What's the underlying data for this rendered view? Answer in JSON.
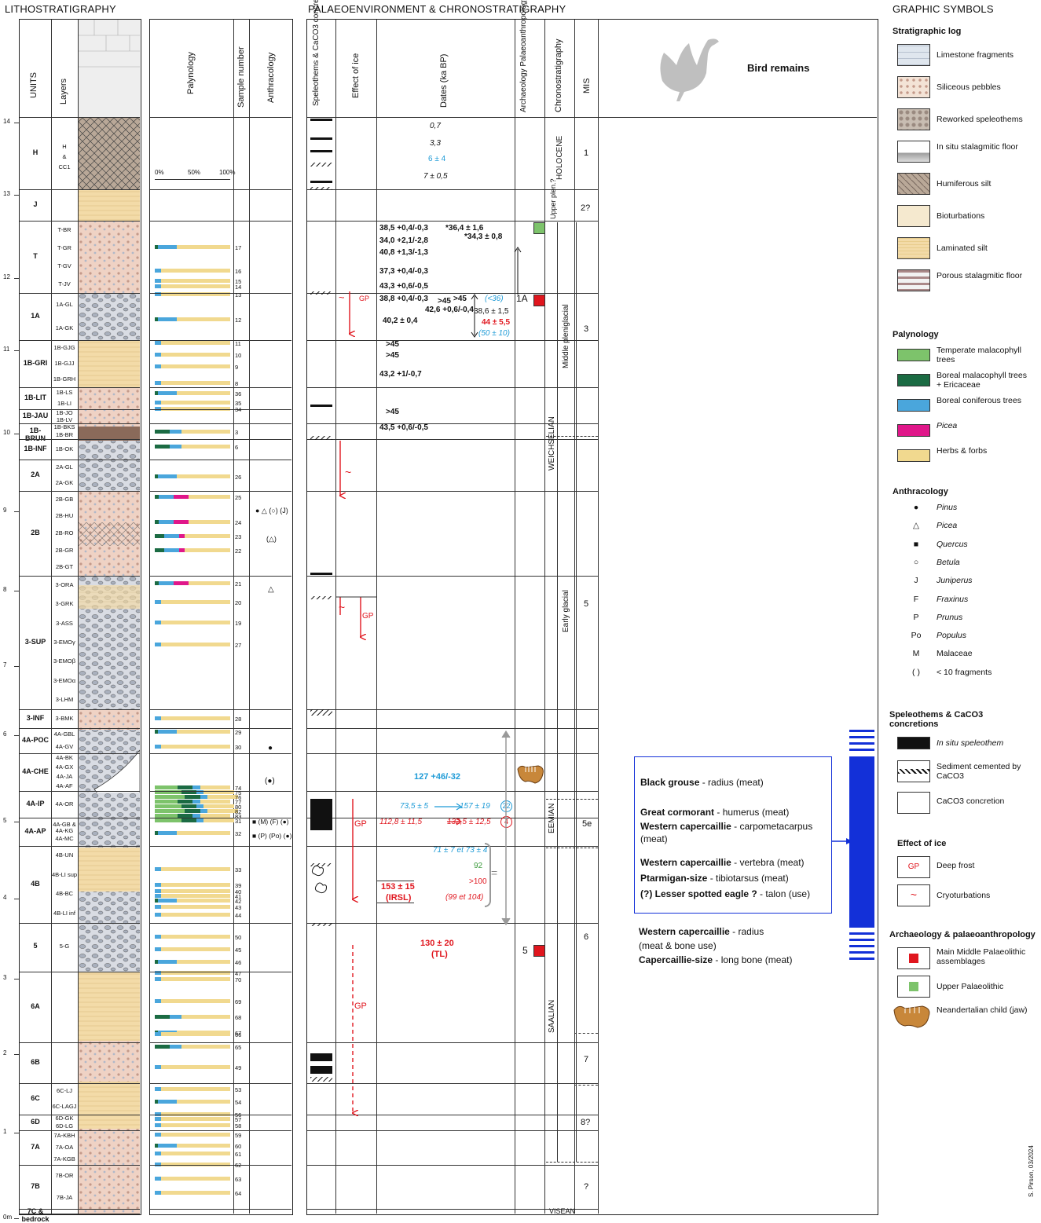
{
  "headers": {
    "lithostratigraphy": "LITHOSTRATIGRAPHY",
    "palaeo": "PALAEOENVIRONMENT  &  CHRONOSTRATIGRAPHY",
    "graphic_symbols": "GRAPHIC SYMBOLS"
  },
  "columns": {
    "units": "UNITS",
    "layers": "Layers",
    "palynology": "Palynology",
    "sample_number": "Sample number",
    "anthracology": "Anthracology",
    "speleothems": "Speleothems & CaCO3 concretions",
    "effect_of_ice": "Effect of ice",
    "dates": "Dates (ka BP)",
    "archaeology": "Archaeology Palaeoanthropology",
    "chronostratigraphy": "Chronostratigraphy",
    "mis": "MIS",
    "bird_remains": "Bird remains"
  },
  "depth_ticks": [
    "14",
    "13",
    "12",
    "11",
    "10",
    "9",
    "8",
    "7",
    "6",
    "5",
    "4",
    "3",
    "2",
    "1",
    "0m"
  ],
  "units": [
    "H",
    "J",
    "T",
    "1A",
    "1B-GRI",
    "1B-LIT",
    "1B-JAU",
    "1B-BRUN",
    "1B-INF",
    "2A",
    "2B",
    "3-SUP",
    "3-INF",
    "4A-POC",
    "4A-CHE",
    "4A-IP",
    "4A-AP",
    "4B",
    "5",
    "6A",
    "6B",
    "6C",
    "6D",
    "7A",
    "7B",
    "7C & bedrock"
  ],
  "layers": {
    "H": "H & CC1",
    "J": "",
    "T": [
      "T-BR",
      "T-GR",
      "T-GV",
      "T-JV"
    ],
    "1A": [
      "1A-GL",
      "1A-GK"
    ],
    "1B-GRI": [
      "1B-GJG",
      "1B-GJJ",
      "1B-GRH"
    ],
    "1B-LIT": [
      "1B-LS",
      "1B-LI"
    ],
    "1B-JAU": [
      "1B-JO",
      "1B-LV"
    ],
    "1B-BRUN": [
      "1B-BKS",
      "1B-BR"
    ],
    "1B-INF": [
      "1B-OK"
    ],
    "2A": [
      "2A-GL",
      "2A-GK"
    ],
    "2B": [
      "2B-GB",
      "2B-HU",
      "2B-RO",
      "2B-GR",
      "2B-GT"
    ],
    "3-SUP": [
      "3-ORA",
      "3-GRK",
      "3-ASS",
      "3-EMOγ",
      "3-EMOβ",
      "3-EMOα",
      "3-LHM"
    ],
    "3-INF": [
      "3-BMK"
    ],
    "4A-POC": [
      "4A-GBL",
      "4A-GV"
    ],
    "4A-CHE": [
      "4A-BK",
      "4A-GX",
      "4A-JA",
      "4A-AF"
    ],
    "4A-IP": [
      "4A-OR"
    ],
    "4A-AP": [
      "4A-GB & 4A-KG",
      "4A-MC"
    ],
    "4B": [
      "4B-UN",
      "4B-LI sup",
      "4B-BC",
      "4B-LI inf"
    ],
    "5": [
      "5-G"
    ],
    "6C": [
      "6C-LJ",
      "6C-LAGJ"
    ],
    "6D": [
      "6D-GK",
      "6D-LG"
    ],
    "7A": [
      "7A-KBH",
      "7A-OA",
      "7A-KGB"
    ],
    "7B": [
      "7B-OR",
      "7B-JA"
    ]
  },
  "palynology_scale": [
    "0%",
    "50%",
    "100%"
  ],
  "samples": [
    "17",
    "16",
    "15",
    "14",
    "13",
    "12",
    "11",
    "10",
    "9",
    "8",
    "36",
    "35",
    "34",
    "3",
    "6",
    "26",
    "25",
    "24",
    "23",
    "22",
    "21",
    "20",
    "19",
    "27",
    "28",
    "29",
    "30",
    "74",
    "75",
    "76",
    "77",
    "80",
    "82",
    "83",
    "31",
    "32",
    "33",
    "39",
    "40",
    "41",
    "42",
    "43",
    "44",
    "50",
    "45",
    "46",
    "47",
    "70",
    "69",
    "68",
    "67",
    "66",
    "65",
    "49",
    "53",
    "54",
    "56",
    "57",
    "58",
    "59",
    "60",
    "61",
    "62",
    "63",
    "64"
  ],
  "anthracology_marks": {
    "a2b": "● △ (○) (J)",
    "a2b_2": "(△)",
    "a3": "△",
    "a4apoc": "●",
    "a4ache": "(●)",
    "a4aip": "■ (M) (F) (●)",
    "a4aap": "■ (P) (Po) (●)"
  },
  "ice": {
    "gp": "GP",
    "cryo": "~"
  },
  "dates": {
    "h1": "0,7",
    "h2": "3,3",
    "h3": "6 ± 4",
    "h4": "7 ± 0,5",
    "t1": "38,5 +0,4/-0,3",
    "t2": "*36,4 ± 1,6",
    "t3": "*34,3 ± 0,8",
    "t4": "34,0 +2,1/-2,8",
    "t5": "40,8 +1,3/-1,3",
    "t6": "37,3 +0,4/-0,3",
    "t7": "43,3 +0,6/-0,5",
    "a1": "38,8 +0,4/-0,3",
    "a2": ">45",
    "a3": ">45",
    "a4": "42,6 +0,6/-0,4",
    "a5": "38,6 ± 1,5",
    "a6": "40,2 ± 0,4",
    "a7": "(<36)",
    "a8": "44 ± 5,5",
    "a9": "(50 ± 10)",
    "g1": ">45",
    "g2": ">45",
    "g3": "43,2 +1/-0,7",
    "j1": ">45",
    "br1": "43,5 +0,6/-0,5",
    "che1": "127 +46/-32",
    "che2a": "73,5 ± 5",
    "che2b": "157 ± 19",
    "che2c": "22",
    "ip1a": "112,8 ± 11,5",
    "ip1b": "132,5 ± 12,5",
    "ip1c": "4",
    "b1": "71 ± 7 et 73 ± 4",
    "b2": "92",
    "b3": ">100",
    "b4": "(99 et 104)",
    "b5": "153 ± 15",
    "b6": "(IRSL)",
    "u5a": "130 ± 20",
    "u5b": "(TL)",
    "eq": "="
  },
  "archaeology": {
    "label_1a": "1A",
    "label_5": "5"
  },
  "chrono": {
    "holocene": "HOLOCENE",
    "upper_plen": "Upper plen.?",
    "middle_plen": "Middle pleniglacial",
    "weichselian": "WEICHSELIAN",
    "early_glacial": "Early glacial",
    "eemian": "EEMIAN",
    "saalian": "SAALIAN",
    "visean": "VISEAN"
  },
  "mis": [
    "1",
    "2?",
    "3",
    "5",
    "5e",
    "6",
    "7",
    "8?",
    "?"
  ],
  "birds": {
    "box1": [
      {
        "name": "Black grouse",
        "rest": " - radius (meat)"
      },
      {
        "name": "Great cormorant",
        "rest": " - humerus (meat)"
      },
      {
        "name": "Western capercaillie",
        "rest": " - carpometacarpus"
      },
      {
        "name": "",
        "rest": "(meat)"
      },
      {
        "name": "Western capercaillie",
        "rest": " - vertebra (meat)"
      },
      {
        "name": "Ptarmigan-size",
        "rest": " -  tibiotarsus (meat)"
      },
      {
        "name": "(?) Lesser spotted eagle ?",
        "rest": " - talon (use)"
      }
    ],
    "box2": [
      {
        "name": "Western capercaillie",
        "rest": " - radius"
      },
      {
        "name": "",
        "rest": "(meat & bone use)"
      },
      {
        "name": "Capercaillie-size",
        "rest": " - long bone (meat)"
      }
    ]
  },
  "legend": {
    "strat_title": "Stratigraphic log",
    "strat": [
      "Limestone fragments",
      "Siliceous pebbles",
      "Reworked speleothems",
      "In situ stalagmitic floor",
      "Humiferous silt",
      "Bioturbations",
      "Laminated silt",
      "Porous stalagmitic floor"
    ],
    "paly_title": "Palynology",
    "paly": [
      "Temperate malacophyll trees",
      "Boreal malacophyll trees + Ericaceae",
      "Boreal coniferous trees",
      "Picea",
      "Herbs & forbs"
    ],
    "anth_title": "Anthracology",
    "anth_symbols": [
      "●",
      "△",
      "■",
      "○",
      "J",
      "F",
      "P",
      "Po",
      "M",
      "( )"
    ],
    "anth": [
      "Pinus",
      "Picea",
      "Quercus",
      "Betula",
      "Juniperus",
      "Fraxinus",
      "Prunus",
      "Populus",
      "Malaceae",
      "< 10 fragments"
    ],
    "spel_title": "Speleothems & CaCO3 concretions",
    "spel": [
      "In situ speleothem",
      "Sediment cemented by CaCO3",
      "CaCO3 concretion"
    ],
    "ice_title": "Effect of ice",
    "ice": [
      "Deep frost",
      "Cryoturbations"
    ],
    "ice_sym": [
      "GP",
      "~"
    ],
    "arch_title": "Archaeology & palaeoanthropology",
    "arch": [
      "Main Middle Palaeolithic assemblages",
      "Upper Palaeolithic",
      "Neandertalian child (jaw)"
    ],
    "credit": "S. Pirson, 03/2024"
  },
  "colors": {
    "temperate": "#7dc36b",
    "boreal_malaco": "#1b6b43",
    "coniferous": "#4aa6dc",
    "picea": "#e0178a",
    "herbs": "#f1d98f",
    "bird_blue": "#1330d8",
    "red": "#e0161e"
  }
}
